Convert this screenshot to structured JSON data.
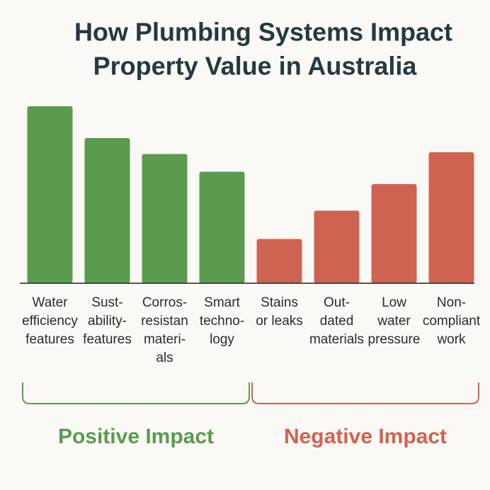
{
  "chart_data": {
    "type": "bar",
    "title": [
      "How Plumbing Systems Impact",
      "Property Value in Australia"
    ],
    "categories": [
      [
        "Water",
        "efficiency",
        "features"
      ],
      [
        "Sust-",
        "ability-",
        "features"
      ],
      [
        "Corros-",
        "resistan",
        "materi-",
        "als"
      ],
      [
        "Smart",
        "techno-",
        "logy"
      ],
      [
        "Stains",
        "or leaks"
      ],
      [
        "Out-",
        "dated",
        "materials"
      ],
      [
        "Low",
        "water",
        "pressure"
      ],
      [
        "Non-",
        "compliant",
        "work"
      ]
    ],
    "series": [
      {
        "name": "Positive Impact",
        "color": "#5a9b4f",
        "values": [
          100,
          82,
          73,
          63,
          null,
          null,
          null,
          null
        ]
      },
      {
        "name": "Negative Impact",
        "color": "#cf6352",
        "values": [
          null,
          null,
          null,
          null,
          25,
          41,
          56,
          74
        ]
      }
    ],
    "ylim": [
      0,
      100
    ]
  }
}
